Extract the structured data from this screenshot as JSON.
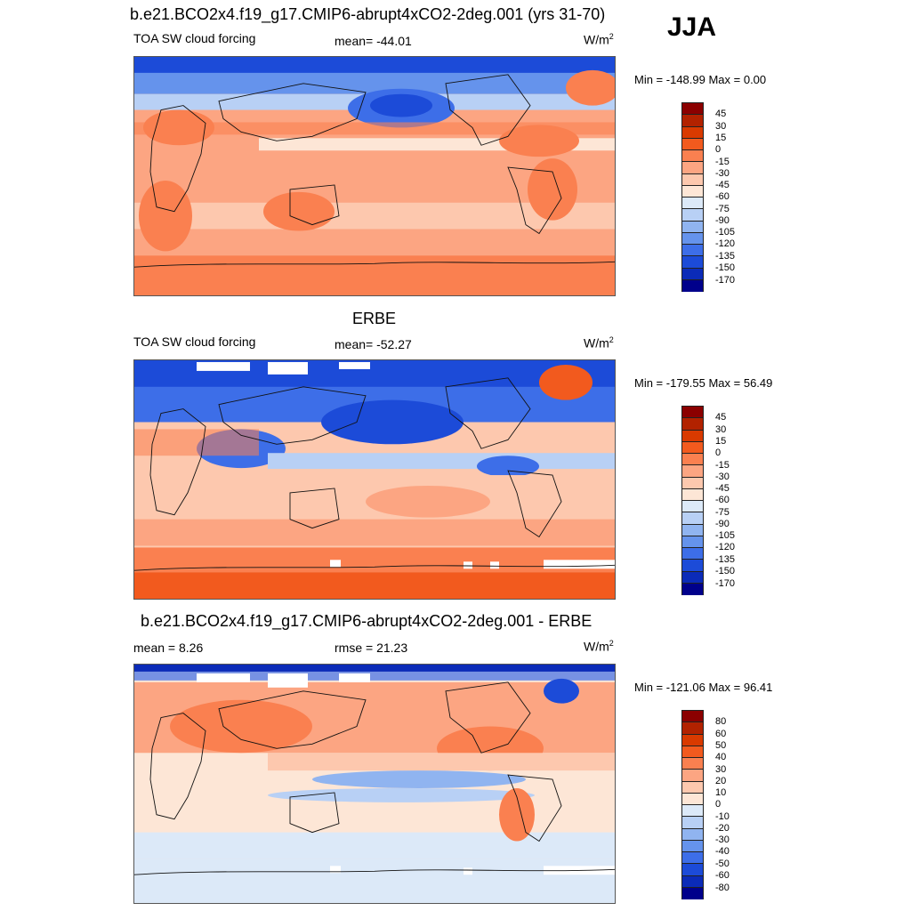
{
  "season": "JJA",
  "palette_cf": [
    "#8b0000",
    "#b22200",
    "#d93a00",
    "#f25a1e",
    "#fa8050",
    "#fca582",
    "#fdc8ae",
    "#fde6d6",
    "#dce9f8",
    "#b8d0f5",
    "#90b4f0",
    "#6593ec",
    "#3d6ee8",
    "#1c4bd8",
    "#0b2bb8",
    "#00008b"
  ],
  "palette_diff": [
    "#8b0000",
    "#b22200",
    "#d93a00",
    "#f25a1e",
    "#fa8050",
    "#fca582",
    "#fdc8ae",
    "#fde6d6",
    "#dce9f8",
    "#b8d0f5",
    "#90b4f0",
    "#6593ec",
    "#3d6ee8",
    "#1c4bd8",
    "#0b2bb8",
    "#00008b"
  ],
  "panels": [
    {
      "title": "b.e21.BCO2x4.f19_g17.CMIP6-abrupt4xCO2-2deg.001 (yrs 31-70)",
      "left_label": "TOA SW cloud forcing",
      "center_label": "mean= -44.01",
      "units_base": "W/m",
      "units_exp": "2",
      "minmax": "Min = -148.99 Max =   0.00",
      "colorbar_labels": [
        "45",
        "30",
        "15",
        "0",
        "-15",
        "-30",
        "-45",
        "-60",
        "-75",
        "-90",
        "-105",
        "-120",
        "-135",
        "-150",
        "-170"
      ]
    },
    {
      "title": "ERBE",
      "left_label": "TOA SW cloud forcing",
      "center_label": "mean= -52.27",
      "units_base": "W/m",
      "units_exp": "2",
      "minmax": "Min = -179.55 Max =  56.49",
      "colorbar_labels": [
        "45",
        "30",
        "15",
        "0",
        "-15",
        "-30",
        "-45",
        "-60",
        "-75",
        "-90",
        "-105",
        "-120",
        "-135",
        "-150",
        "-170"
      ]
    },
    {
      "title": "b.e21.BCO2x4.f19_g17.CMIP6-abrupt4xCO2-2deg.001 - ERBE",
      "left_label": "mean =   8.26",
      "center_label": "rmse =  21.23",
      "units_base": "W/m",
      "units_exp": "2",
      "minmax": "Min = -121.06 Max =  96.41",
      "colorbar_labels": [
        "80",
        "60",
        "50",
        "40",
        "30",
        "20",
        "10",
        "0",
        "-10",
        "-20",
        "-30",
        "-40",
        "-50",
        "-60",
        "-80"
      ]
    }
  ]
}
